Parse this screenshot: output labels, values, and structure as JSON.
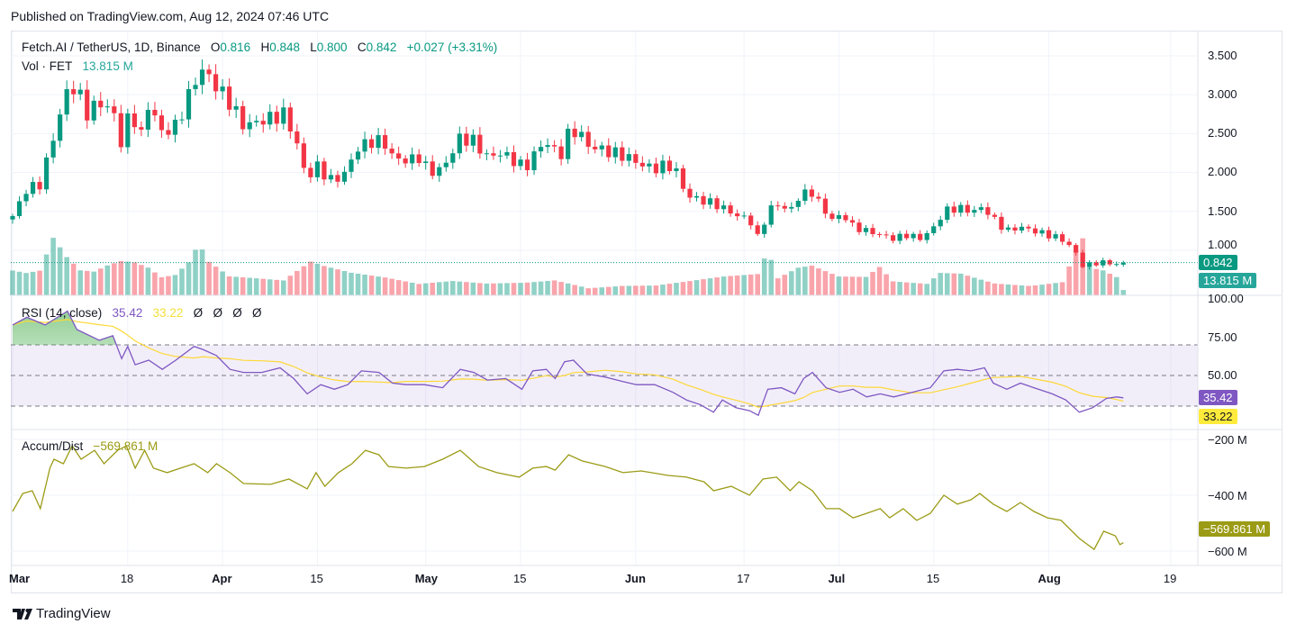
{
  "published": "Published on TradingView.com, Aug 12, 2024 07:46 UTC",
  "legend": {
    "symbol": "Fetch.AI / TetherUS, 1D, Binance",
    "o_label": "O",
    "o": "0.816",
    "h_label": "H",
    "h": "0.848",
    "l_label": "L",
    "l": "0.800",
    "c_label": "C",
    "c": "0.842",
    "change": "+0.027 (+3.31%)",
    "vol_label": "Vol · FET",
    "vol": "13.815 M"
  },
  "rsi_legend": {
    "label": "RSI (14, close)",
    "value": "35.42",
    "ma": "33.22",
    "extras": [
      "Ø",
      "Ø",
      "Ø",
      "Ø"
    ]
  },
  "ad_legend": {
    "label": "Accum/Dist",
    "value": "−569.861 M"
  },
  "price_axis": [
    "3.500",
    "3.000",
    "2.500",
    "2.000",
    "1.500",
    "1.000"
  ],
  "rsi_axis": [
    "100.00",
    "75.00",
    "50.00"
  ],
  "ad_axis": [
    "−200 M",
    "−400 M",
    "−600 M"
  ],
  "tags": {
    "price": "0.842",
    "volume": "13.815 M",
    "rsi": "35.42",
    "rsi_ma": "33.22",
    "ad": "−569.861 M"
  },
  "time_axis": [
    {
      "label": "Mar",
      "day": 0,
      "bold": true
    },
    {
      "label": "18",
      "day": 17
    },
    {
      "label": "Apr",
      "day": 31,
      "bold": true
    },
    {
      "label": "15",
      "day": 45
    },
    {
      "label": "May",
      "day": 61,
      "bold": true
    },
    {
      "label": "15",
      "day": 75
    },
    {
      "label": "Jun",
      "day": 92,
      "bold": true
    },
    {
      "label": "17",
      "day": 108
    },
    {
      "label": "Jul",
      "day": 122,
      "bold": true
    },
    {
      "label": "15",
      "day": 136
    },
    {
      "label": "Aug",
      "day": 153,
      "bold": true
    },
    {
      "label": "19",
      "day": 171
    }
  ],
  "brand": "TradingView",
  "colors": {
    "up": "#089981",
    "down": "#f23645",
    "rsi": "#7e57c2",
    "rsi_ma": "#fdd835",
    "ad": "#9b9b16"
  },
  "chart_data": {
    "type": "candlestick",
    "x_unit": "days since Mar 1, 2024",
    "last_day": 164,
    "price_close_keypoints": [
      [
        0,
        1.44
      ],
      [
        2.1,
        1.79
      ],
      [
        4.1,
        1.85
      ],
      [
        6.1,
        2.48
      ],
      [
        8.1,
        3.06
      ],
      [
        9.5,
        3.1
      ],
      [
        10.8,
        2.75
      ],
      [
        12.8,
        2.9
      ],
      [
        14.8,
        2.8
      ],
      [
        16.1,
        2.35
      ],
      [
        17.5,
        2.85
      ],
      [
        18.8,
        2.4
      ],
      [
        20.1,
        2.9
      ],
      [
        22.1,
        2.5
      ],
      [
        24.1,
        2.6
      ],
      [
        26.1,
        3.0
      ],
      [
        27.5,
        3.3
      ],
      [
        28.5,
        3.3
      ],
      [
        30.1,
        3.1
      ],
      [
        32.1,
        2.9
      ],
      [
        34.1,
        2.6
      ],
      [
        36.1,
        2.65
      ],
      [
        38.1,
        2.7
      ],
      [
        40.1,
        2.75
      ],
      [
        41.5,
        2.5
      ],
      [
        43.5,
        1.9
      ],
      [
        44.8,
        2.1
      ],
      [
        46.8,
        1.9
      ],
      [
        48.8,
        1.95
      ],
      [
        50.8,
        2.3
      ],
      [
        52.8,
        2.4
      ],
      [
        54.8,
        2.4
      ],
      [
        56.1,
        2.2
      ],
      [
        58.1,
        2.15
      ],
      [
        60.1,
        2.2
      ],
      [
        61.5,
        2.0
      ],
      [
        63.5,
        2.05
      ],
      [
        64.8,
        2.25
      ],
      [
        66.1,
        2.45
      ],
      [
        68.1,
        2.4
      ],
      [
        70.1,
        2.2
      ],
      [
        72.1,
        2.25
      ],
      [
        74.1,
        2.15
      ],
      [
        75.7,
        2.05
      ],
      [
        77.5,
        2.3
      ],
      [
        78.8,
        2.4
      ],
      [
        80.8,
        2.2
      ],
      [
        82.1,
        2.5
      ],
      [
        83.5,
        2.55
      ],
      [
        84.8,
        2.35
      ],
      [
        86.8,
        2.3
      ],
      [
        88.8,
        2.25
      ],
      [
        90.8,
        2.2
      ],
      [
        92.8,
        2.1
      ],
      [
        94.8,
        2.05
      ],
      [
        96.8,
        2.1
      ],
      [
        98.1,
        2.0
      ],
      [
        99.5,
        1.7
      ],
      [
        101.5,
        1.65
      ],
      [
        103.5,
        1.6
      ],
      [
        104.8,
        1.55
      ],
      [
        106.8,
        1.45
      ],
      [
        108.8,
        1.4
      ],
      [
        110.1,
        1.15
      ],
      [
        111.5,
        1.5
      ],
      [
        112.8,
        1.6
      ],
      [
        114.8,
        1.5
      ],
      [
        116.1,
        1.7
      ],
      [
        118.1,
        1.75
      ],
      [
        119.5,
        1.55
      ],
      [
        120.8,
        1.4
      ],
      [
        122.8,
        1.45
      ],
      [
        124.1,
        1.3
      ],
      [
        126.1,
        1.25
      ],
      [
        128.1,
        1.2
      ],
      [
        130.1,
        1.15
      ],
      [
        132.1,
        1.2
      ],
      [
        134.1,
        1.15
      ],
      [
        136.1,
        1.3
      ],
      [
        137.5,
        1.5
      ],
      [
        139.5,
        1.55
      ],
      [
        141.5,
        1.5
      ],
      [
        143.5,
        1.55
      ],
      [
        144.8,
        1.4
      ],
      [
        146.8,
        1.25
      ],
      [
        148.8,
        1.3
      ],
      [
        150.8,
        1.25
      ],
      [
        152.8,
        1.2
      ],
      [
        154.8,
        1.15
      ],
      [
        156.8,
        1.0
      ],
      [
        157.9,
        0.8
      ],
      [
        159.5,
        0.83
      ],
      [
        161.5,
        0.85
      ],
      [
        163,
        0.816
      ],
      [
        164,
        0.842
      ]
    ],
    "volume_keypoints_M": [
      [
        0,
        80
      ],
      [
        2,
        70
      ],
      [
        4,
        75
      ],
      [
        6,
        170
      ],
      [
        7,
        140
      ],
      [
        8,
        110
      ],
      [
        10,
        70
      ],
      [
        12,
        65
      ],
      [
        14,
        80
      ],
      [
        16,
        90
      ],
      [
        18,
        85
      ],
      [
        20,
        70
      ],
      [
        22,
        45
      ],
      [
        24,
        50
      ],
      [
        26,
        80
      ],
      [
        27.5,
        125
      ],
      [
        29,
        80
      ],
      [
        32,
        45
      ],
      [
        36,
        40
      ],
      [
        40,
        35
      ],
      [
        44,
        80
      ],
      [
        46,
        70
      ],
      [
        50,
        55
      ],
      [
        55,
        45
      ],
      [
        60,
        30
      ],
      [
        65,
        40
      ],
      [
        70,
        35
      ],
      [
        75,
        40
      ],
      [
        80,
        45
      ],
      [
        85,
        20
      ],
      [
        90,
        25
      ],
      [
        95,
        25
      ],
      [
        100,
        35
      ],
      [
        105,
        45
      ],
      [
        110,
        50
      ],
      [
        111.5,
        105
      ],
      [
        113,
        40
      ],
      [
        116,
        65
      ],
      [
        118,
        70
      ],
      [
        122,
        45
      ],
      [
        126,
        45
      ],
      [
        128,
        70
      ],
      [
        130,
        35
      ],
      [
        135,
        30
      ],
      [
        137,
        60
      ],
      [
        140,
        60
      ],
      [
        145,
        35
      ],
      [
        150,
        30
      ],
      [
        155,
        40
      ],
      [
        157.9,
        175
      ],
      [
        159,
        80
      ],
      [
        161,
        70
      ],
      [
        163,
        50
      ],
      [
        164,
        13.8
      ]
    ],
    "price_axis_range": [
      0.55,
      3.6
    ],
    "rsi": {
      "period": 14,
      "levels": [
        70,
        50,
        30
      ],
      "keypoints": [
        [
          0,
          83
        ],
        [
          2.1,
          88
        ],
        [
          4.8,
          83
        ],
        [
          8.1,
          92
        ],
        [
          9.5,
          80
        ],
        [
          12.8,
          73
        ],
        [
          14.8,
          76
        ],
        [
          16.1,
          61
        ],
        [
          17,
          69
        ],
        [
          18.1,
          57
        ],
        [
          20.1,
          60
        ],
        [
          22.1,
          54
        ],
        [
          24.1,
          60
        ],
        [
          26.8,
          69
        ],
        [
          28.1,
          67
        ],
        [
          30.1,
          63
        ],
        [
          32.1,
          54
        ],
        [
          34.1,
          52
        ],
        [
          36.8,
          52
        ],
        [
          39.5,
          55
        ],
        [
          41.5,
          48
        ],
        [
          43.5,
          38
        ],
        [
          45.5,
          44
        ],
        [
          47.5,
          41
        ],
        [
          49.5,
          44
        ],
        [
          51.5,
          53
        ],
        [
          54.1,
          52
        ],
        [
          56.1,
          45
        ],
        [
          58.1,
          44
        ],
        [
          60.8,
          44
        ],
        [
          63.5,
          42
        ],
        [
          66.1,
          54
        ],
        [
          68.1,
          52
        ],
        [
          70.1,
          47
        ],
        [
          72.8,
          48
        ],
        [
          75.2,
          41
        ],
        [
          76.8,
          53
        ],
        [
          78.8,
          54
        ],
        [
          80.1,
          48
        ],
        [
          81.5,
          59
        ],
        [
          82.8,
          60
        ],
        [
          84.8,
          51
        ],
        [
          87.5,
          49
        ],
        [
          90.1,
          46
        ],
        [
          92.1,
          44
        ],
        [
          94.8,
          44
        ],
        [
          97.5,
          39
        ],
        [
          99.5,
          34
        ],
        [
          101.5,
          31
        ],
        [
          103.5,
          26
        ],
        [
          104.8,
          34
        ],
        [
          106.8,
          29
        ],
        [
          108.8,
          27
        ],
        [
          110.1,
          24
        ],
        [
          111.5,
          41
        ],
        [
          113.5,
          42
        ],
        [
          115.5,
          38
        ],
        [
          116.8,
          48
        ],
        [
          118.1,
          52
        ],
        [
          120.1,
          42
        ],
        [
          122.1,
          39
        ],
        [
          124.1,
          41
        ],
        [
          126.1,
          36
        ],
        [
          128.1,
          38
        ],
        [
          130.1,
          36
        ],
        [
          132.8,
          39
        ],
        [
          135.5,
          42
        ],
        [
          137.5,
          53
        ],
        [
          139.5,
          54
        ],
        [
          141.5,
          53
        ],
        [
          143.5,
          55
        ],
        [
          144.8,
          45
        ],
        [
          146.8,
          41
        ],
        [
          148.8,
          45
        ],
        [
          150.8,
          42
        ],
        [
          153.5,
          38
        ],
        [
          155.5,
          34
        ],
        [
          157.5,
          26
        ],
        [
          159.5,
          29
        ],
        [
          161.5,
          35
        ],
        [
          163,
          36
        ],
        [
          164,
          35.42
        ]
      ]
    },
    "accum_dist_M": [
      [
        0,
        -458
      ],
      [
        1.5,
        -394
      ],
      [
        2.9,
        -384
      ],
      [
        4.1,
        -448
      ],
      [
        5.5,
        -303
      ],
      [
        6.1,
        -271
      ],
      [
        7.5,
        -287
      ],
      [
        8.8,
        -223
      ],
      [
        10.1,
        -271
      ],
      [
        12.1,
        -239
      ],
      [
        13.5,
        -287
      ],
      [
        15.5,
        -239
      ],
      [
        16.8,
        -223
      ],
      [
        18.1,
        -303
      ],
      [
        19.5,
        -239
      ],
      [
        20.8,
        -303
      ],
      [
        22.8,
        -319
      ],
      [
        24.8,
        -303
      ],
      [
        26.8,
        -287
      ],
      [
        28.8,
        -319
      ],
      [
        30.1,
        -287
      ],
      [
        32.1,
        -319
      ],
      [
        34.1,
        -358
      ],
      [
        38.1,
        -361
      ],
      [
        40.8,
        -342
      ],
      [
        43.5,
        -377
      ],
      [
        44.8,
        -319
      ],
      [
        46.1,
        -368
      ],
      [
        48.1,
        -319
      ],
      [
        50.1,
        -287
      ],
      [
        52.1,
        -239
      ],
      [
        54.1,
        -255
      ],
      [
        55.5,
        -297
      ],
      [
        58.1,
        -303
      ],
      [
        60.8,
        -297
      ],
      [
        63.5,
        -271
      ],
      [
        66.1,
        -239
      ],
      [
        68.8,
        -297
      ],
      [
        71.5,
        -319
      ],
      [
        74.8,
        -335
      ],
      [
        76.8,
        -303
      ],
      [
        78.8,
        -297
      ],
      [
        80.1,
        -310
      ],
      [
        82.1,
        -255
      ],
      [
        84.1,
        -277
      ],
      [
        87.5,
        -297
      ],
      [
        90.1,
        -319
      ],
      [
        92.8,
        -313
      ],
      [
        96.8,
        -329
      ],
      [
        99.5,
        -335
      ],
      [
        102.1,
        -352
      ],
      [
        103.5,
        -384
      ],
      [
        106.1,
        -368
      ],
      [
        108.8,
        -400
      ],
      [
        110.8,
        -342
      ],
      [
        112.8,
        -335
      ],
      [
        114.8,
        -384
      ],
      [
        116.1,
        -352
      ],
      [
        118.1,
        -384
      ],
      [
        120.1,
        -448
      ],
      [
        122.1,
        -448
      ],
      [
        124.1,
        -481
      ],
      [
        126.1,
        -465
      ],
      [
        128.1,
        -448
      ],
      [
        129.5,
        -481
      ],
      [
        131.5,
        -448
      ],
      [
        133.5,
        -490
      ],
      [
        135.5,
        -465
      ],
      [
        137.5,
        -400
      ],
      [
        139.5,
        -432
      ],
      [
        141.5,
        -416
      ],
      [
        142.8,
        -394
      ],
      [
        144.8,
        -432
      ],
      [
        146.8,
        -458
      ],
      [
        148.8,
        -426
      ],
      [
        150.8,
        -458
      ],
      [
        152.8,
        -481
      ],
      [
        154.8,
        -490
      ],
      [
        157.5,
        -555
      ],
      [
        159.7,
        -594
      ],
      [
        161.1,
        -529
      ],
      [
        162.8,
        -545
      ],
      [
        163.5,
        -577
      ],
      [
        164,
        -569.861
      ]
    ]
  }
}
